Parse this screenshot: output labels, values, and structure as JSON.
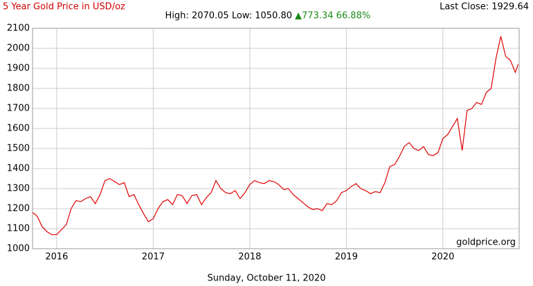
{
  "chart_data": {
    "type": "line",
    "title": "5 Year Gold Price in USD/oz",
    "last_close": "Last Close: 1929.64",
    "high_low": "High: 2070.05 Low: 1050.80",
    "change": "▲773.34 66.88%",
    "watermark": "goldprice.org",
    "date": "Sunday, October 11, 2020",
    "grid": true,
    "xlim": [
      2015.75,
      2020.79
    ],
    "xticks": [
      2016,
      2017,
      2018,
      2019,
      2020
    ],
    "ylim": [
      1000,
      2100
    ],
    "yticks": [
      1000,
      1100,
      1200,
      1300,
      1400,
      1500,
      1600,
      1700,
      1800,
      1900,
      2000,
      2100
    ],
    "x": [
      2015.75,
      2015.78,
      2015.8,
      2015.85,
      2015.9,
      2015.95,
      2016.0,
      2016.05,
      2016.1,
      2016.15,
      2016.2,
      2016.25,
      2016.3,
      2016.35,
      2016.4,
      2016.45,
      2016.5,
      2016.55,
      2016.6,
      2016.65,
      2016.7,
      2016.75,
      2016.8,
      2016.85,
      2016.9,
      2016.95,
      2017.0,
      2017.05,
      2017.1,
      2017.15,
      2017.2,
      2017.25,
      2017.3,
      2017.35,
      2017.4,
      2017.45,
      2017.5,
      2017.55,
      2017.6,
      2017.65,
      2017.7,
      2017.75,
      2017.8,
      2017.85,
      2017.9,
      2017.95,
      2018.0,
      2018.05,
      2018.1,
      2018.15,
      2018.2,
      2018.25,
      2018.3,
      2018.35,
      2018.4,
      2018.45,
      2018.5,
      2018.55,
      2018.6,
      2018.65,
      2018.7,
      2018.75,
      2018.8,
      2018.85,
      2018.9,
      2018.95,
      2019.0,
      2019.05,
      2019.1,
      2019.15,
      2019.2,
      2019.25,
      2019.3,
      2019.35,
      2019.4,
      2019.45,
      2019.5,
      2019.55,
      2019.6,
      2019.65,
      2019.7,
      2019.75,
      2019.8,
      2019.85,
      2019.9,
      2019.95,
      2020.0,
      2020.05,
      2020.1,
      2020.15,
      2020.2,
      2020.25,
      2020.3,
      2020.35,
      2020.4,
      2020.45,
      2020.5,
      2020.55,
      2020.6,
      2020.65,
      2020.7,
      2020.75,
      2020.78
    ],
    "series": [
      {
        "name": "Gold",
        "color": "#e00000",
        "values": [
          1180,
          1170,
          1160,
          1110,
          1085,
          1070,
          1070,
          1095,
          1120,
          1200,
          1240,
          1235,
          1250,
          1260,
          1225,
          1270,
          1340,
          1350,
          1335,
          1320,
          1330,
          1260,
          1270,
          1220,
          1175,
          1135,
          1150,
          1200,
          1235,
          1245,
          1220,
          1270,
          1265,
          1225,
          1265,
          1270,
          1220,
          1255,
          1280,
          1340,
          1300,
          1280,
          1275,
          1290,
          1250,
          1280,
          1320,
          1340,
          1330,
          1325,
          1340,
          1335,
          1320,
          1295,
          1300,
          1270,
          1250,
          1230,
          1210,
          1195,
          1200,
          1190,
          1225,
          1220,
          1240,
          1280,
          1290,
          1310,
          1325,
          1300,
          1290,
          1275,
          1285,
          1280,
          1330,
          1410,
          1420,
          1460,
          1510,
          1530,
          1500,
          1490,
          1510,
          1470,
          1465,
          1480,
          1550,
          1570,
          1610,
          1650,
          1490,
          1690,
          1700,
          1730,
          1720,
          1780,
          1800,
          1950,
          2060,
          1960,
          1940,
          1880,
          1920
        ]
      }
    ]
  }
}
